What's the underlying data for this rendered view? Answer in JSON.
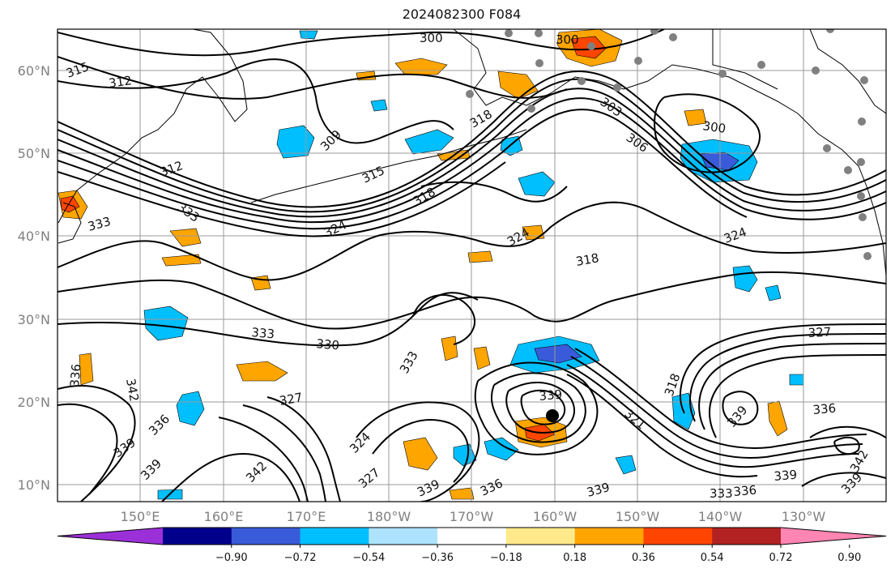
{
  "title": "2024082300 F084",
  "lat_labels": [
    "60°N",
    "50°N",
    "40°N",
    "30°N",
    "20°N",
    "10°N"
  ],
  "lon_labels": [
    "150°E",
    "160°E",
    "170°E",
    "180°W",
    "170°W",
    "160°W",
    "150°W",
    "140°W",
    "130°W"
  ],
  "colorbar": {
    "colors": [
      "#9b30d9",
      "#00008b",
      "#3a5bd9",
      "#00bfff",
      "#aee3ff",
      "#ffffff",
      "#ffe98a",
      "#ffa500",
      "#ff4500",
      "#b22222",
      "#ff85b3"
    ],
    "labels": [
      "−0.90",
      "−0.72",
      "−0.54",
      "−0.36",
      "−0.18",
      "0.18",
      "0.36",
      "0.54",
      "0.72",
      "0.90"
    ]
  },
  "contour_labels": [
    "300",
    "300",
    "315",
    "312",
    "303",
    "306",
    "300",
    "309",
    "318",
    "312",
    "315",
    "318",
    "333",
    "324",
    "324",
    "324",
    "318",
    "333",
    "330",
    "327",
    "333",
    "318",
    "336",
    "342",
    "327",
    "336",
    "339",
    "339",
    "324",
    "342",
    "327",
    "339",
    "336",
    "339",
    "321",
    "339",
    "333",
    "336",
    "339",
    "339",
    "336",
    "342",
    "339"
  ],
  "legend_symbols": {
    "storm_marker": "storm-center-icon",
    "stations": "station-dot-icon"
  }
}
